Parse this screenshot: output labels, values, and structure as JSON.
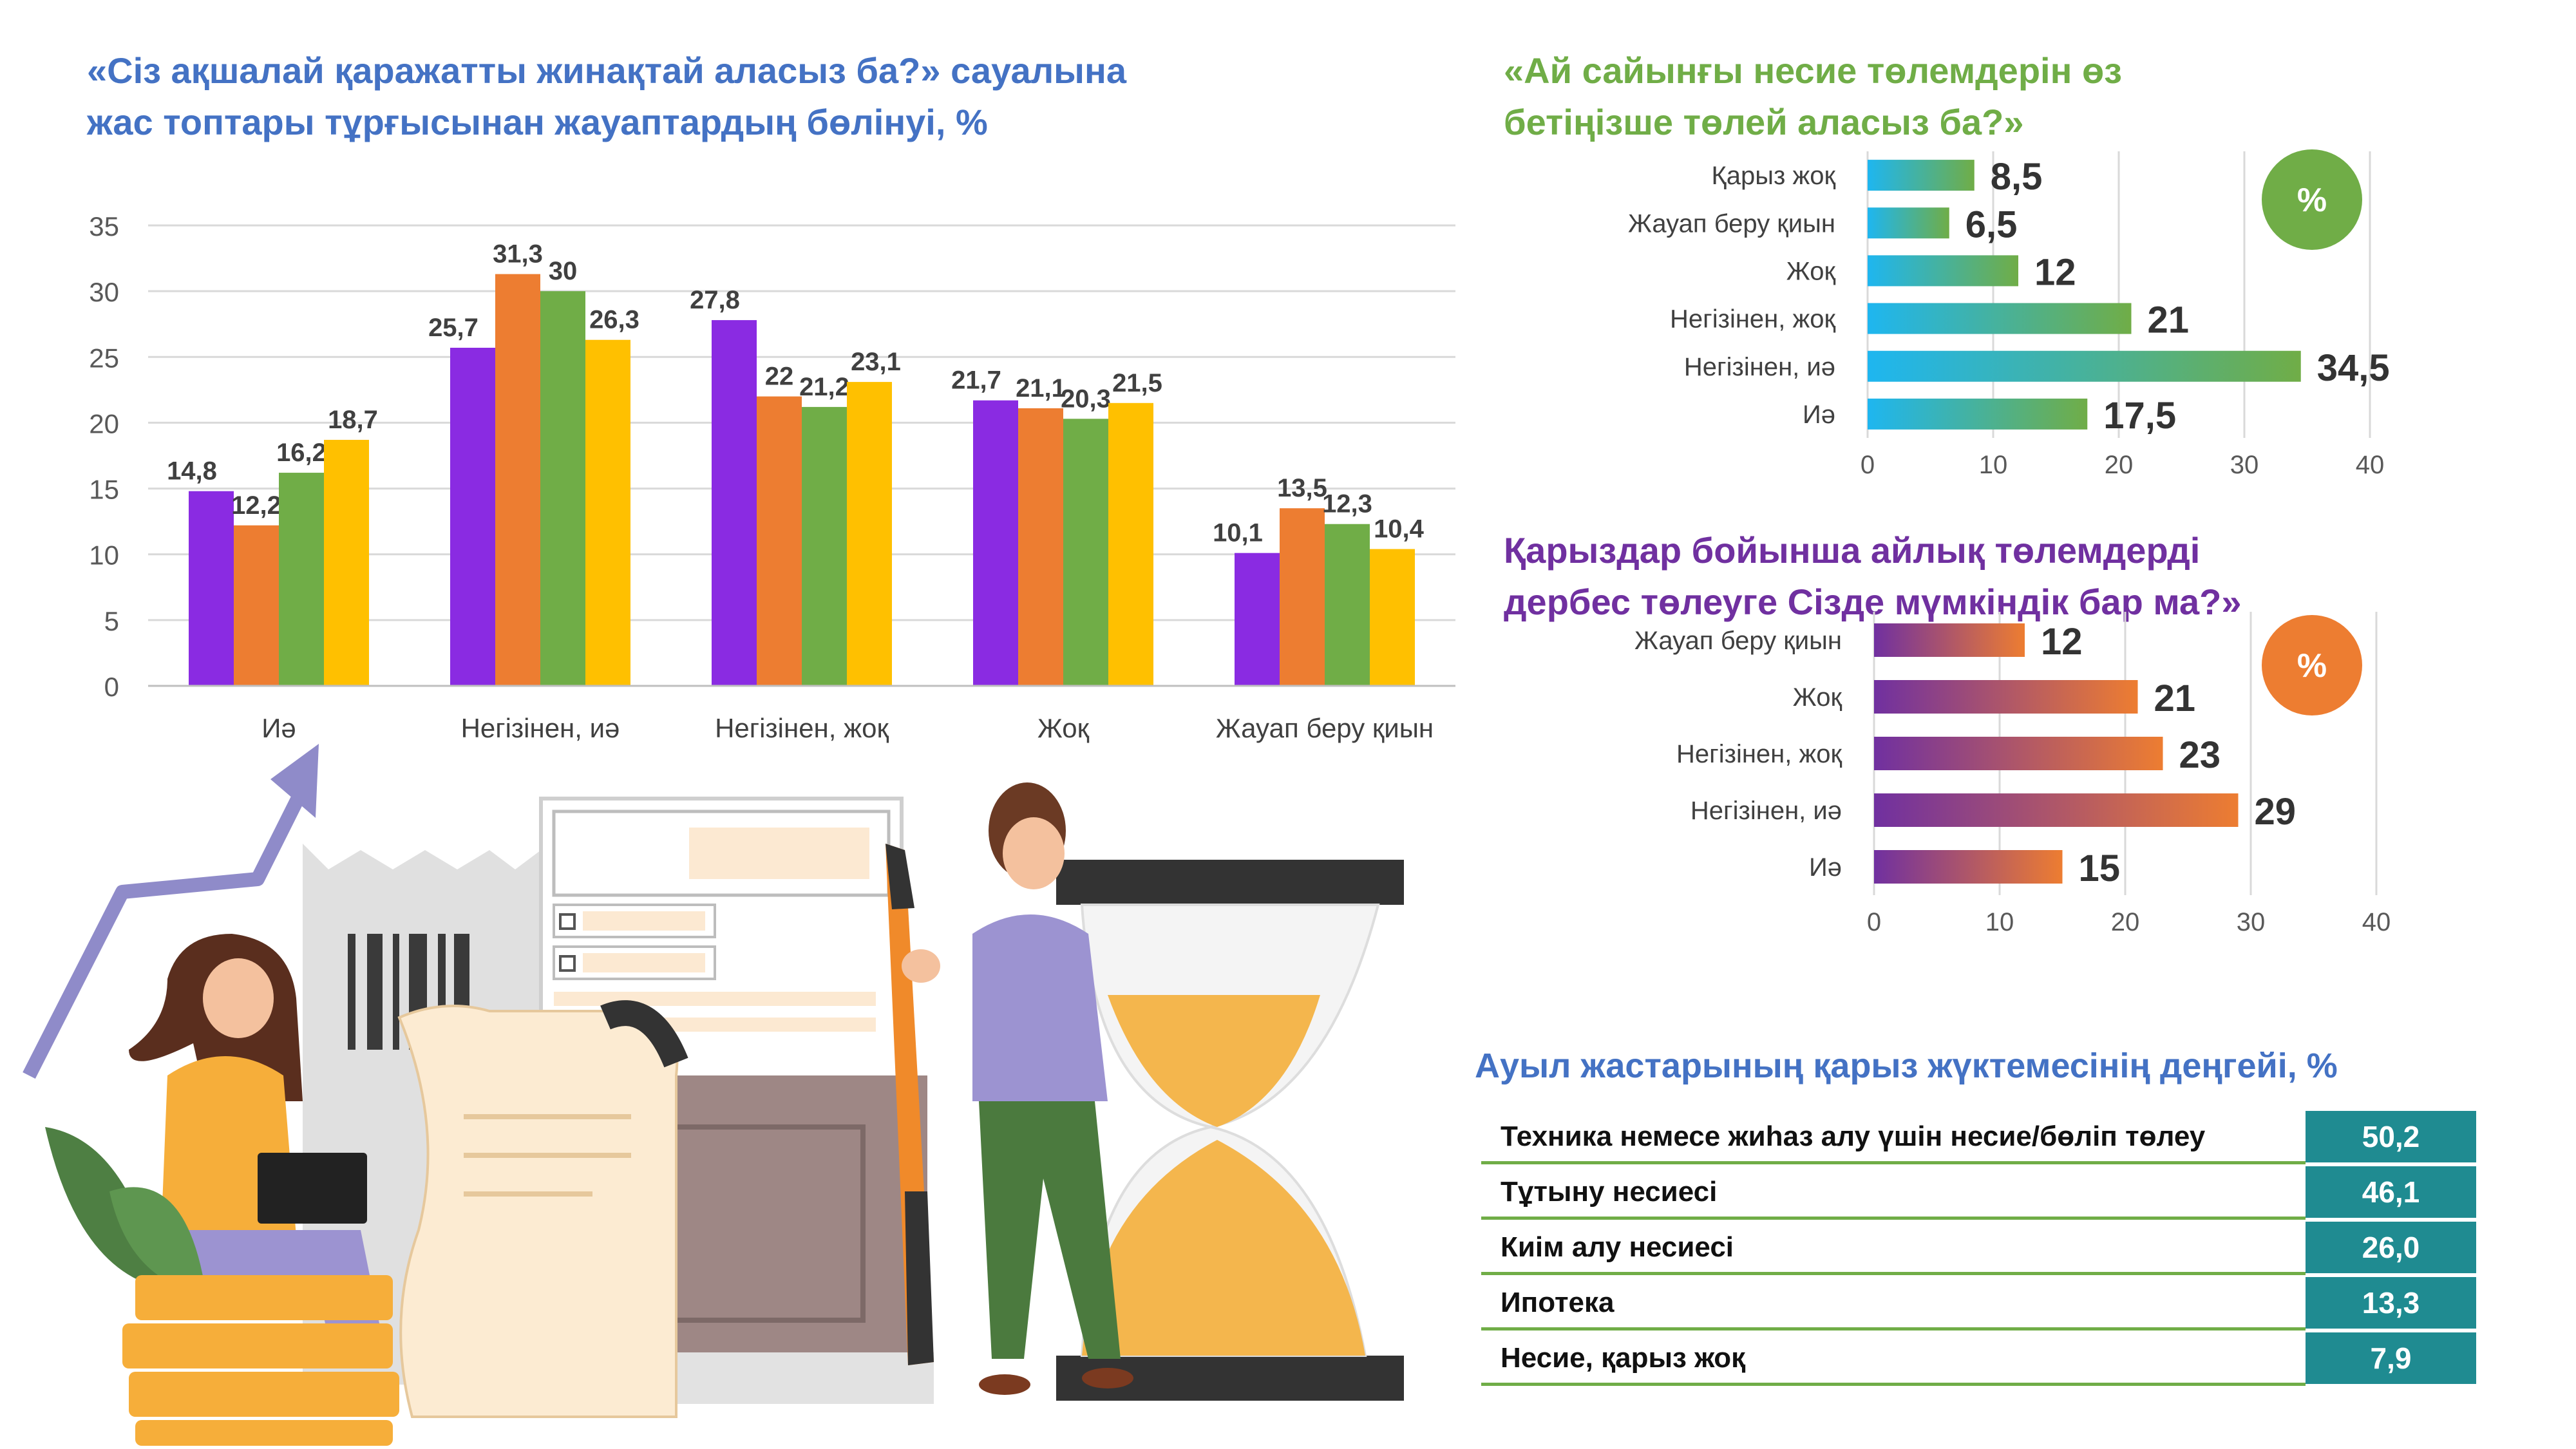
{
  "charts": {
    "main": {
      "title_line1": "«Сіз ақшалай қаражатты жинақтай аласыз ба?» сауалына",
      "title_line2": "жас топтары тұрғысынан жауаптардың бөлінуі, %"
    },
    "payments": {
      "title_line1": "«Ай сайынғы несие төлемдерін өз",
      "title_line2": "бетіңізше төлей аласыз ба?»",
      "badge": "%"
    },
    "loans": {
      "title_line1": "Қарыздар бойынша айлық төлемдерді",
      "title_line2": "дербес төлеуге Сізде мүмкіндік бар ма?»",
      "badge": "%"
    }
  },
  "chart_data": [
    {
      "type": "bar",
      "title": "«Сіз ақшалай қаражатты жинақтай аласыз ба?» сауалына жас топтары тұрғысынан жауаптардың бөлінуі, %",
      "categories": [
        "Иә",
        "Негізінен, иә",
        "Негізінен, жоқ",
        "Жоқ",
        "Жауап беру қиын"
      ],
      "series": [
        {
          "values": [
            14.8,
            25.7,
            27.8,
            21.7,
            10.1
          ],
          "labels": [
            "14,8",
            "25,7",
            "27,8",
            "21,7",
            "10,1"
          ],
          "color": "#8A2BE2"
        },
        {
          "values": [
            12.2,
            31.3,
            22,
            21.1,
            13.5
          ],
          "labels": [
            "12,2",
            "31,3",
            "22",
            "21,1",
            "13,5"
          ],
          "color": "#ED7D31"
        },
        {
          "values": [
            16.2,
            30,
            21.2,
            20.3,
            12.3
          ],
          "labels": [
            "16,2",
            "30",
            "21,2",
            "20,3",
            "12,3"
          ],
          "color": "#70AD47"
        },
        {
          "values": [
            18.7,
            26.3,
            23.1,
            21.5,
            10.4
          ],
          "labels": [
            "18,7",
            "26,3",
            "23,1",
            "21,5",
            "10,4"
          ],
          "color": "#FFC000"
        }
      ],
      "ylim": [
        0,
        35
      ],
      "yticks": [
        "0",
        "5",
        "10",
        "15",
        "20",
        "25",
        "30",
        "35"
      ],
      "grid": true,
      "legend": "none"
    },
    {
      "type": "bar",
      "orientation": "horizontal",
      "title": "«Ай сайынғы несие төлемдерін өз бетіңізше төлей аласыз ба?»",
      "categories": [
        "Қарыз жоқ",
        "Жауап беру қиын",
        "Жоқ",
        "Негізінен, жоқ",
        "Негізінен, иә",
        "Иә"
      ],
      "values": [
        8.5,
        6.5,
        12,
        21,
        34.5,
        17.5
      ],
      "labels": [
        "8,5",
        "6,5",
        "12",
        "21",
        "34,5",
        "17,5"
      ],
      "xlim": [
        0,
        40
      ],
      "xticks": [
        "0",
        "10",
        "20",
        "30",
        "40"
      ],
      "gradient": [
        "#1EB6F0",
        "#70AD47"
      ],
      "grid": true
    },
    {
      "type": "bar",
      "orientation": "horizontal",
      "title": "Қарыздар бойынша айлық төлемдерді дербес төлеуге Сізде мүмкіндік бар ма?»",
      "categories": [
        "Жауап беру қиын",
        "Жоқ",
        "Негізінен, жоқ",
        "Негізінен, иә",
        "Иә"
      ],
      "values": [
        12,
        21,
        23,
        29,
        15
      ],
      "labels": [
        "12",
        "21",
        "23",
        "29",
        "15"
      ],
      "xlim": [
        0,
        40
      ],
      "xticks": [
        "0",
        "10",
        "20",
        "30",
        "40"
      ],
      "gradient": [
        "#7030A0",
        "#ED7D31"
      ],
      "grid": true
    },
    {
      "type": "table",
      "title": "Ауыл жастарының қарыз жүктемесінің деңгейі, %",
      "rows": [
        {
          "label": "Техника немесе жиһаз алу үшін несие/бөліп төлеу",
          "value": "50,2"
        },
        {
          "label": "Тұтыну несиесі",
          "value": "46,1"
        },
        {
          "label": "Киім алу несиесі",
          "value": "26,0"
        },
        {
          "label": "Ипотека",
          "value": "13,3"
        },
        {
          "label": "Несие, қарыз жоқ",
          "value": "7,9"
        }
      ]
    }
  ],
  "colors": {
    "title_blue": "#4472C4",
    "title_green": "#70AD47",
    "title_purple": "#7030A0",
    "table_value_bg": "#1F8B91",
    "table_line": "#70AD47"
  }
}
